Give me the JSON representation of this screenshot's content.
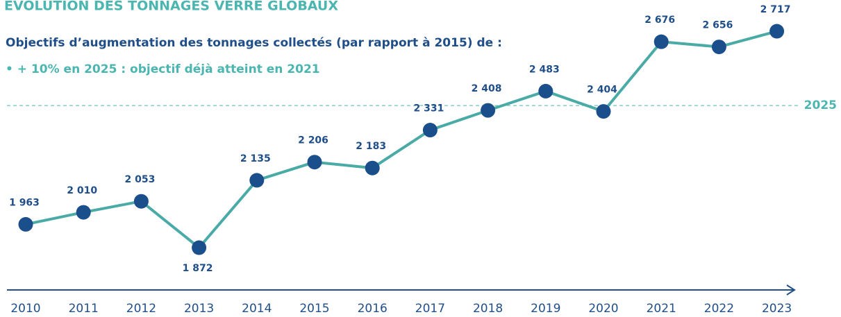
{
  "chart_data": {
    "type": "line",
    "title": "EVOLUTION DES TONNAGES VERRE GLOBAUX",
    "subtitle": "Objectifs d’augmentation des tonnages collectés (par rapport à 2015) de :",
    "annotation": "• + 10% en 2025 : objectif déjà atteint en 2021",
    "categories": [
      "2010",
      "2011",
      "2012",
      "2013",
      "2014",
      "2015",
      "2016",
      "2017",
      "2018",
      "2019",
      "2020",
      "2021",
      "2022",
      "2023"
    ],
    "series": [
      {
        "color": "#4aaba6",
        "marker_color": "#1b4f8c",
        "values": [
          1963,
          2010,
          2053,
          1872,
          2135,
          2206,
          2183,
          2331,
          2408,
          2483,
          2404,
          2676,
          2656,
          2717
        ],
        "value_labels": [
          "1 963",
          "2 010",
          "2 053",
          "1 872",
          "2 135",
          "2 206",
          "2 183",
          "2 331",
          "2 408",
          "2 483",
          "2 404",
          "2 676",
          "2 656",
          "2 717"
        ]
      }
    ],
    "reference_line": {
      "value": 2427,
      "label": "2025",
      "color": "#4bb5b0"
    },
    "ylim": [
      1800,
      2800
    ]
  }
}
